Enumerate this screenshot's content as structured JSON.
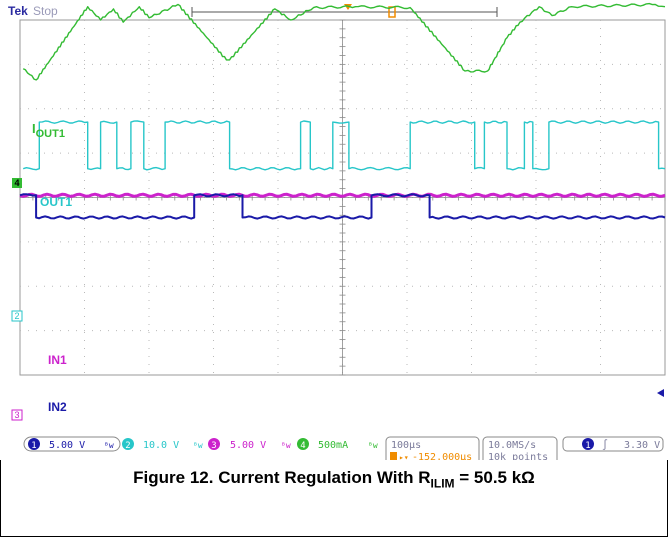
{
  "header": {
    "brand": "Tek",
    "state": "Stop",
    "trigger_marker": "T"
  },
  "channel_labels": {
    "ch4": "I",
    "ch4_sub": "OUT1",
    "ch2": "OUT1",
    "ch3": "IN1",
    "ch1": "IN2"
  },
  "ground_markers": {
    "ch4": "4",
    "ch2": "2",
    "ch3": "3"
  },
  "status_bar": {
    "ch1_num": "1",
    "ch1_scale": "5.00 V",
    "ch2_num": "2",
    "ch2_scale": "10.0 V",
    "ch3_num": "3",
    "ch3_scale": "5.00 V",
    "ch4_num": "4",
    "ch4_scale": "500mA",
    "timebase": "100µs",
    "trigger_pos": "-152.000µs",
    "sample_rate": "10.0MS/s",
    "record_length": "10k points",
    "trig_source": "1",
    "trig_level": "3.30 V"
  },
  "colors": {
    "ch1": "#1a1aa8",
    "ch2": "#27c6c9",
    "ch3": "#cc22cc",
    "ch4": "#33bb33",
    "grid": "#b9b9b9",
    "accent": "#f08c00"
  },
  "chart_data": {
    "type": "line",
    "x_unit": "divisions",
    "divisions": 10,
    "series": [
      {
        "name": "IOUT1",
        "x": [
          0.05,
          0.25,
          1.05,
          1.25,
          1.45,
          1.6,
          1.85,
          2.0,
          2.45,
          3.2,
          3.25,
          3.95,
          4.2,
          4.55,
          5.2,
          6.05,
          6.9,
          7.25,
          7.55,
          7.75,
          8.05,
          8.25,
          8.55,
          9.85,
          10.0
        ],
        "y": [
          2.9,
          2.65,
          4.3,
          4.0,
          4.25,
          3.95,
          4.3,
          4.05,
          4.35,
          3.1,
          3.1,
          4.25,
          4.0,
          4.28,
          4.3,
          4.28,
          2.85,
          2.85,
          3.6,
          3.95,
          4.3,
          4.1,
          4.3,
          4.35,
          4.3
        ]
      },
      {
        "name": "OUT1",
        "x": [
          0.05,
          0.3,
          0.3,
          1.05,
          1.05,
          1.25,
          1.25,
          1.5,
          1.5,
          1.72,
          1.72,
          1.92,
          1.92,
          2.25,
          2.25,
          3.25,
          3.25,
          4.35,
          4.35,
          4.5,
          4.5,
          4.85,
          4.85,
          5.1,
          5.1,
          6.05,
          6.05,
          7.05,
          7.05,
          7.2,
          7.2,
          7.55,
          7.55,
          7.82,
          7.82,
          7.95,
          7.95,
          8.2,
          8.2,
          9.9,
          9.9,
          10.0
        ],
        "y": [
          0.65,
          0.65,
          1.7,
          1.7,
          0.65,
          0.65,
          1.7,
          1.7,
          0.65,
          0.65,
          1.7,
          1.7,
          0.65,
          0.65,
          1.7,
          1.7,
          0.65,
          0.65,
          1.7,
          1.7,
          0.65,
          0.65,
          1.7,
          1.7,
          0.65,
          0.65,
          1.7,
          1.7,
          0.65,
          0.65,
          1.7,
          1.7,
          0.65,
          0.65,
          1.7,
          1.7,
          0.65,
          0.65,
          1.7,
          1.7,
          0.65,
          0.65
        ]
      },
      {
        "name": "IN1",
        "x": [
          0.0,
          10.0
        ],
        "y": [
          0.05,
          0.05
        ]
      },
      {
        "name": "IN2",
        "x": [
          0.0,
          0.25,
          0.25,
          2.7,
          2.7,
          3.45,
          3.45,
          5.45,
          5.45,
          6.35,
          6.35,
          10.0
        ],
        "y": [
          0.05,
          0.05,
          -0.45,
          -0.45,
          0.05,
          0.05,
          -0.45,
          -0.45,
          0.05,
          0.05,
          -0.45,
          -0.45
        ]
      }
    ]
  },
  "caption": {
    "prefix": "Figure 12. Current Regulation With R",
    "sub": "ILIM",
    "suffix": " = 50.5 kΩ"
  }
}
